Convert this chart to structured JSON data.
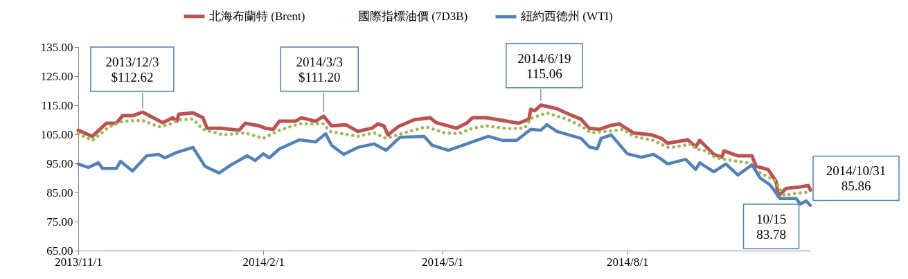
{
  "chart_data": {
    "type": "line",
    "legend": "top",
    "xlim": [
      "2013-11-01",
      "2014-10-31"
    ],
    "xticks": [
      {
        "value": "2013-11-01",
        "label": "2013/11/1"
      },
      {
        "value": "2014-02-01",
        "label": "2014/2/1"
      },
      {
        "value": "2014-05-01",
        "label": "2014/5/1"
      },
      {
        "value": "2014-08-01",
        "label": "2014/8/1"
      }
    ],
    "ylim": [
      65,
      135
    ],
    "yticks": [
      {
        "value": 65,
        "label": "65.00"
      },
      {
        "value": 75,
        "label": "75.00"
      },
      {
        "value": 85,
        "label": "85.00"
      },
      {
        "value": 95,
        "label": "95.00"
      },
      {
        "value": 105,
        "label": "105.00"
      },
      {
        "value": 115,
        "label": "115.00"
      },
      {
        "value": 125,
        "label": "125.00"
      },
      {
        "value": 135,
        "label": "135.00"
      }
    ],
    "grid": false,
    "series": [
      {
        "name": "北海布蘭特 (Brent)",
        "color": "#c0504d",
        "line_style": "solid",
        "x": [
          "2013-11-01",
          "2013-11-08",
          "2013-11-15",
          "2013-11-20",
          "2013-11-23",
          "2013-11-28",
          "2013-12-03",
          "2013-12-13",
          "2013-12-18",
          "2013-12-20",
          "2013-12-21",
          "2013-12-28",
          "2014-01-02",
          "2014-01-04",
          "2014-01-11",
          "2014-01-20",
          "2014-01-23",
          "2014-01-30",
          "2014-02-02",
          "2014-02-06",
          "2014-02-09",
          "2014-02-17",
          "2014-02-20",
          "2014-02-27",
          "2014-03-03",
          "2014-03-07",
          "2014-03-14",
          "2014-03-20",
          "2014-03-27",
          "2014-03-30",
          "2014-04-02",
          "2014-04-04",
          "2014-04-09",
          "2014-04-17",
          "2014-04-25",
          "2014-04-28",
          "2014-05-08",
          "2014-05-13",
          "2014-05-16",
          "2014-05-23",
          "2014-06-08",
          "2014-06-13",
          "2014-06-14",
          "2014-06-16",
          "2014-06-19",
          "2014-06-27",
          "2014-07-03",
          "2014-07-09",
          "2014-07-13",
          "2014-07-18",
          "2014-07-23",
          "2014-07-28",
          "2014-08-04",
          "2014-08-13",
          "2014-08-18",
          "2014-08-21",
          "2014-08-31",
          "2014-09-04",
          "2014-09-06",
          "2014-09-13",
          "2014-09-17",
          "2014-09-18",
          "2014-09-25",
          "2014-10-02",
          "2014-10-04",
          "2014-10-10",
          "2014-10-14",
          "2014-10-15",
          "2014-10-19",
          "2014-10-26",
          "2014-10-30",
          "2014-10-31"
        ],
        "values": [
          106.4,
          104.3,
          108.8,
          108.8,
          111.4,
          111.4,
          112.62,
          109.0,
          110.7,
          109.5,
          111.9,
          112.4,
          110.7,
          107.1,
          107.1,
          106.4,
          108.8,
          107.9,
          107.1,
          106.7,
          109.5,
          109.5,
          110.7,
          109.5,
          111.2,
          107.9,
          108.3,
          106.0,
          107.1,
          108.6,
          107.9,
          104.8,
          107.6,
          110.0,
          110.7,
          109.0,
          107.1,
          108.8,
          110.7,
          110.7,
          108.8,
          110.2,
          113.6,
          113.1,
          115.06,
          113.8,
          111.9,
          110.2,
          107.1,
          106.7,
          107.9,
          108.6,
          105.5,
          104.8,
          103.6,
          101.9,
          103.1,
          100.7,
          102.9,
          98.1,
          97.1,
          99.3,
          97.6,
          97.6,
          94.0,
          92.9,
          88.8,
          83.78,
          86.4,
          86.9,
          87.4,
          85.86
        ]
      },
      {
        "name": "國際指標油價 (7D3B)",
        "color": "#9bbb59",
        "line_style": "dotted",
        "x": [
          "2013-11-01",
          "2013-11-08",
          "2013-11-16",
          "2013-11-23",
          "2013-12-03",
          "2013-12-11",
          "2013-12-16",
          "2013-12-21",
          "2013-12-28",
          "2014-01-02",
          "2014-01-12",
          "2014-01-23",
          "2014-02-01",
          "2014-02-09",
          "2014-02-19",
          "2014-03-03",
          "2014-03-06",
          "2014-03-20",
          "2014-03-28",
          "2014-04-03",
          "2014-04-12",
          "2014-04-23",
          "2014-05-02",
          "2014-05-09",
          "2014-05-16",
          "2014-05-23",
          "2014-06-03",
          "2014-06-11",
          "2014-06-14",
          "2014-06-22",
          "2014-07-02",
          "2014-07-09",
          "2014-07-14",
          "2014-07-24",
          "2014-07-30",
          "2014-08-04",
          "2014-08-14",
          "2014-08-21",
          "2014-08-25",
          "2014-09-02",
          "2014-09-04",
          "2014-09-09",
          "2014-09-14",
          "2014-09-22",
          "2014-09-30",
          "2014-10-05",
          "2014-10-13",
          "2014-10-18",
          "2014-10-22",
          "2014-10-28",
          "2014-10-31"
        ],
        "values": [
          105.2,
          102.9,
          107.4,
          109.5,
          109.8,
          107.6,
          108.3,
          110.0,
          110.2,
          106.7,
          104.8,
          105.5,
          103.6,
          106.4,
          108.6,
          108.6,
          106.0,
          104.3,
          105.5,
          103.6,
          105.5,
          107.6,
          105.5,
          105.2,
          107.1,
          107.9,
          106.9,
          107.1,
          110.5,
          112.4,
          110.2,
          107.9,
          105.5,
          106.2,
          106.7,
          104.3,
          102.9,
          100.5,
          100.7,
          101.7,
          100.0,
          99.3,
          96.9,
          96.0,
          95.2,
          92.1,
          89.3,
          84.0,
          84.5,
          85.0,
          85.2
        ]
      },
      {
        "name": "紐約西德州 (WTI)",
        "color": "#4f81bd",
        "line_style": "solid",
        "x": [
          "2013-11-01",
          "2013-11-06",
          "2013-11-11",
          "2013-11-13",
          "2013-11-20",
          "2013-11-22",
          "2013-11-28",
          "2013-12-05",
          "2013-12-11",
          "2013-12-14",
          "2013-12-20",
          "2013-12-28",
          "2014-01-03",
          "2014-01-10",
          "2014-01-16",
          "2014-01-24",
          "2014-01-28",
          "2014-02-01",
          "2014-02-04",
          "2014-02-09",
          "2014-02-19",
          "2014-02-27",
          "2014-03-04",
          "2014-03-07",
          "2014-03-13",
          "2014-03-20",
          "2014-03-28",
          "2014-04-03",
          "2014-04-10",
          "2014-04-22",
          "2014-04-26",
          "2014-05-04",
          "2014-05-09",
          "2014-05-16",
          "2014-05-24",
          "2014-05-31",
          "2014-06-07",
          "2014-06-14",
          "2014-06-19",
          "2014-06-22",
          "2014-06-27",
          "2014-07-09",
          "2014-07-13",
          "2014-07-17",
          "2014-07-19",
          "2014-07-24",
          "2014-08-01",
          "2014-08-08",
          "2014-08-14",
          "2014-08-18",
          "2014-08-21",
          "2014-08-30",
          "2014-09-04",
          "2014-09-06",
          "2014-09-13",
          "2014-09-19",
          "2014-09-25",
          "2014-10-02",
          "2014-10-06",
          "2014-10-11",
          "2014-10-16",
          "2014-10-24",
          "2014-10-26",
          "2014-10-29",
          "2014-10-31"
        ],
        "values": [
          94.8,
          93.6,
          95.2,
          93.3,
          93.3,
          95.7,
          92.4,
          97.6,
          98.1,
          96.9,
          98.8,
          100.5,
          94.0,
          91.7,
          94.5,
          97.6,
          96.0,
          98.3,
          96.9,
          100.0,
          103.1,
          102.4,
          105.2,
          101.2,
          98.1,
          100.5,
          101.7,
          99.5,
          104.0,
          104.3,
          101.2,
          99.5,
          100.7,
          102.4,
          104.3,
          102.9,
          102.9,
          106.7,
          106.4,
          108.3,
          106.0,
          103.6,
          100.7,
          100.0,
          103.6,
          104.8,
          98.3,
          97.1,
          98.1,
          96.4,
          94.8,
          96.4,
          92.9,
          95.2,
          92.1,
          94.8,
          91.0,
          94.5,
          90.0,
          87.6,
          82.9,
          82.9,
          81.0,
          82.1,
          80.5
        ]
      }
    ],
    "annotations": [
      {
        "text": "2013/12/3\n$112.62",
        "x": "2013-12-03",
        "y": 112.62
      },
      {
        "text": "2014/3/3\n$111.20",
        "x": "2014-03-03",
        "y": 111.2
      },
      {
        "text": "2014/6/19\n115.06",
        "x": "2014-06-19",
        "y": 115.06
      },
      {
        "text": "10/15\n83.78",
        "x": "2014-10-15",
        "y": 83.78
      },
      {
        "text": "2014/10/31\n85.86",
        "x": "2014-10-31",
        "y": 85.86
      }
    ]
  }
}
